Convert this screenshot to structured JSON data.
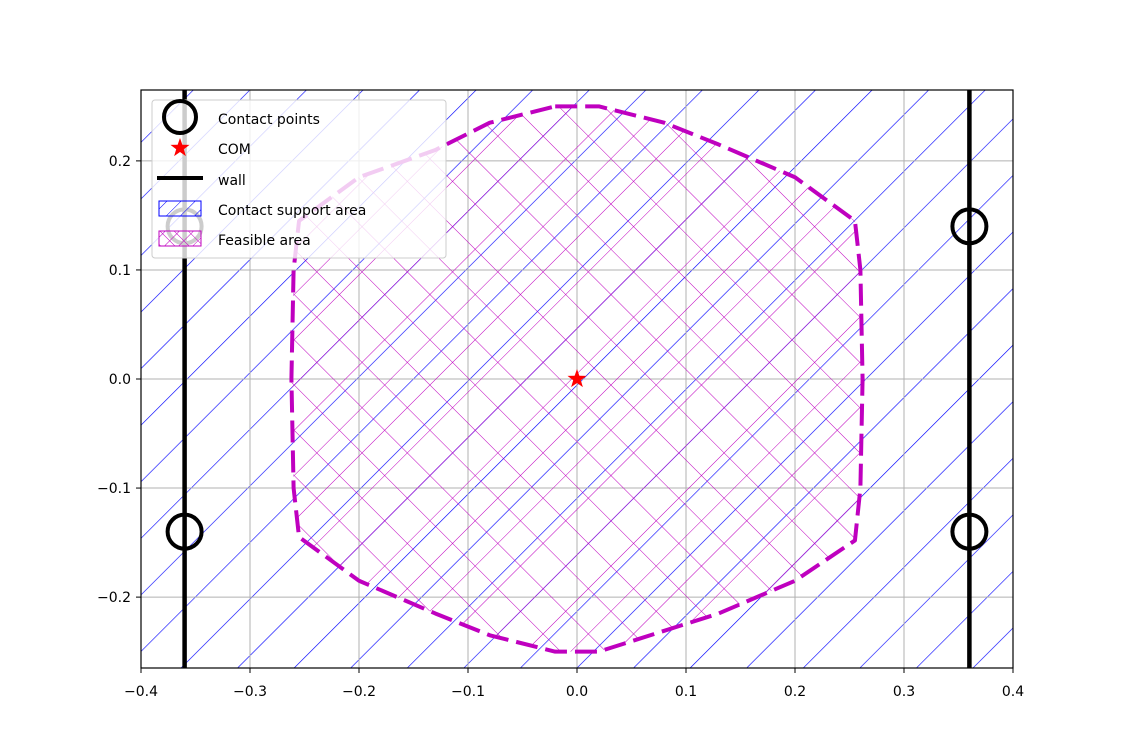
{
  "chart_data": {
    "type": "area",
    "title": "",
    "xlabel": "",
    "ylabel": "",
    "xlim": [
      -0.4,
      0.4
    ],
    "ylim": [
      -0.265,
      0.265
    ],
    "xticks": [
      -0.4,
      -0.3,
      -0.2,
      -0.1,
      0.0,
      0.1,
      0.2,
      0.3,
      0.4
    ],
    "yticks": [
      -0.2,
      -0.1,
      0.0,
      0.1,
      0.2
    ],
    "xtick_labels": [
      "−0.4",
      "−0.3",
      "−0.2",
      "−0.1",
      "0.0",
      "0.1",
      "0.2",
      "0.3",
      "0.4"
    ],
    "ytick_labels": [
      "−0.2",
      "−0.1",
      "0.0",
      "0.1",
      "0.2"
    ],
    "grid": true,
    "legend_position": "top-left",
    "legend": [
      "Contact points",
      "COM",
      "wall",
      "Contact support area",
      "Feasible area"
    ],
    "colors": {
      "contact_points": "#000000",
      "com": "#ff0000",
      "wall": "#000000",
      "support_area": "#0000ff",
      "feasible_area": "#bf00bf"
    },
    "contact_points": [
      {
        "x": -0.36,
        "y": 0.14
      },
      {
        "x": -0.36,
        "y": -0.14
      },
      {
        "x": 0.36,
        "y": 0.14
      },
      {
        "x": 0.36,
        "y": -0.14
      }
    ],
    "com": {
      "x": 0.0,
      "y": 0.0
    },
    "walls_x": [
      -0.36,
      0.36
    ],
    "support_area": [
      [
        -0.36,
        0.14
      ],
      [
        0.36,
        0.14
      ],
      [
        0.36,
        -0.14
      ],
      [
        -0.36,
        -0.14
      ]
    ],
    "feasible_area": [
      [
        -0.02,
        0.25
      ],
      [
        0.02,
        0.25
      ],
      [
        0.08,
        0.235
      ],
      [
        0.13,
        0.215
      ],
      [
        0.2,
        0.185
      ],
      [
        0.255,
        0.145
      ],
      [
        0.26,
        0.1
      ],
      [
        0.262,
        0.0
      ],
      [
        0.26,
        -0.1
      ],
      [
        0.255,
        -0.148
      ],
      [
        0.2,
        -0.185
      ],
      [
        0.13,
        -0.215
      ],
      [
        0.02,
        -0.25
      ],
      [
        -0.02,
        -0.25
      ],
      [
        -0.08,
        -0.235
      ],
      [
        -0.13,
        -0.215
      ],
      [
        -0.2,
        -0.185
      ],
      [
        -0.255,
        -0.145
      ],
      [
        -0.26,
        -0.1
      ],
      [
        -0.262,
        0.0
      ],
      [
        -0.26,
        0.1
      ],
      [
        -0.255,
        0.145
      ],
      [
        -0.2,
        0.185
      ],
      [
        -0.13,
        0.21
      ],
      [
        -0.08,
        0.235
      ]
    ]
  }
}
